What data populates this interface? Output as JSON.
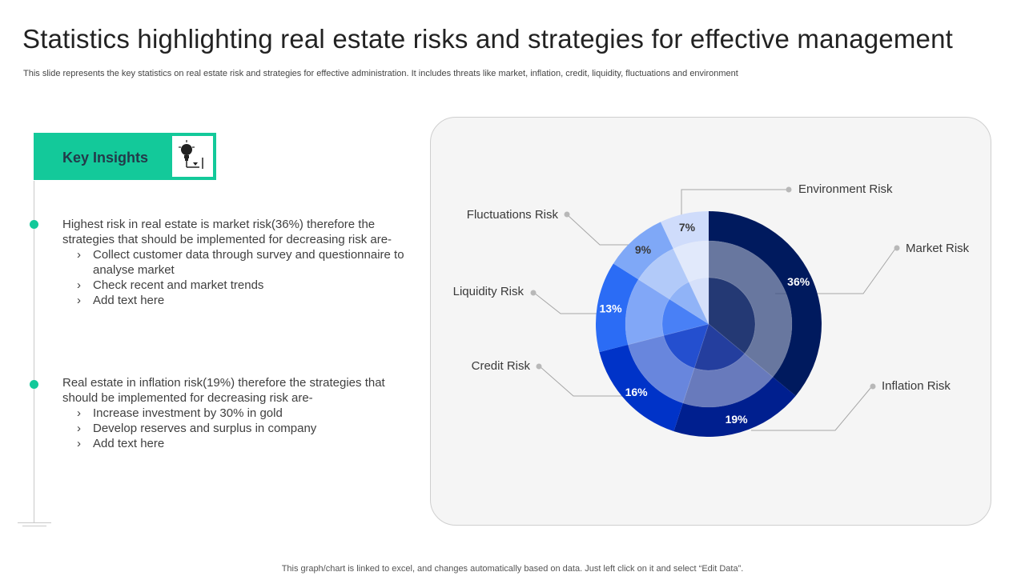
{
  "header": {
    "title": "Statistics highlighting real estate risks and strategies for effective management",
    "subtitle": "This slide represents the key statistics on real estate risk and strategies for effective administration. It includes threats like market, inflation, credit, liquidity, fluctuations and environment"
  },
  "insights": {
    "heading": "Key Insights",
    "icon": "lightbulb-idea-icon",
    "accent_color": "#13c99a",
    "blocks": [
      {
        "text": "Highest risk in real estate is market risk(36%) therefore the strategies that should be implemented for decreasing risk are-",
        "items": [
          "Collect customer data through survey and questionnaire to analyse market",
          "Check recent and market trends",
          "Add text here"
        ]
      },
      {
        "text": "Real estate in inflation risk(19%) therefore the strategies that should be implemented for decreasing risk are-",
        "items": [
          "Increase investment by 30% in gold",
          "Develop reserves and surplus in company",
          "Add text here"
        ]
      }
    ],
    "chevron": "›"
  },
  "chart_data": {
    "type": "pie",
    "title": "",
    "categories": [
      "Market Risk",
      "Inflation Risk",
      "Credit Risk",
      "Liquidity Risk",
      "Fluctuations Risk",
      "Environment Risk"
    ],
    "values": [
      36,
      19,
      16,
      13,
      9,
      7
    ],
    "value_labels": [
      "36%",
      "19%",
      "16%",
      "13%",
      "9%",
      "7%"
    ],
    "colors": [
      "#001a5e",
      "#001f8f",
      "#0033c8",
      "#2b6cf5",
      "#7fa8f7",
      "#cfdcfb"
    ],
    "style": "layered concentric rings, starting at top going clockwise",
    "legend": "callout labels"
  },
  "footer": {
    "note": "This graph/chart is linked to excel, and changes automatically based on data. Just left click on it and select “Edit Data”."
  }
}
